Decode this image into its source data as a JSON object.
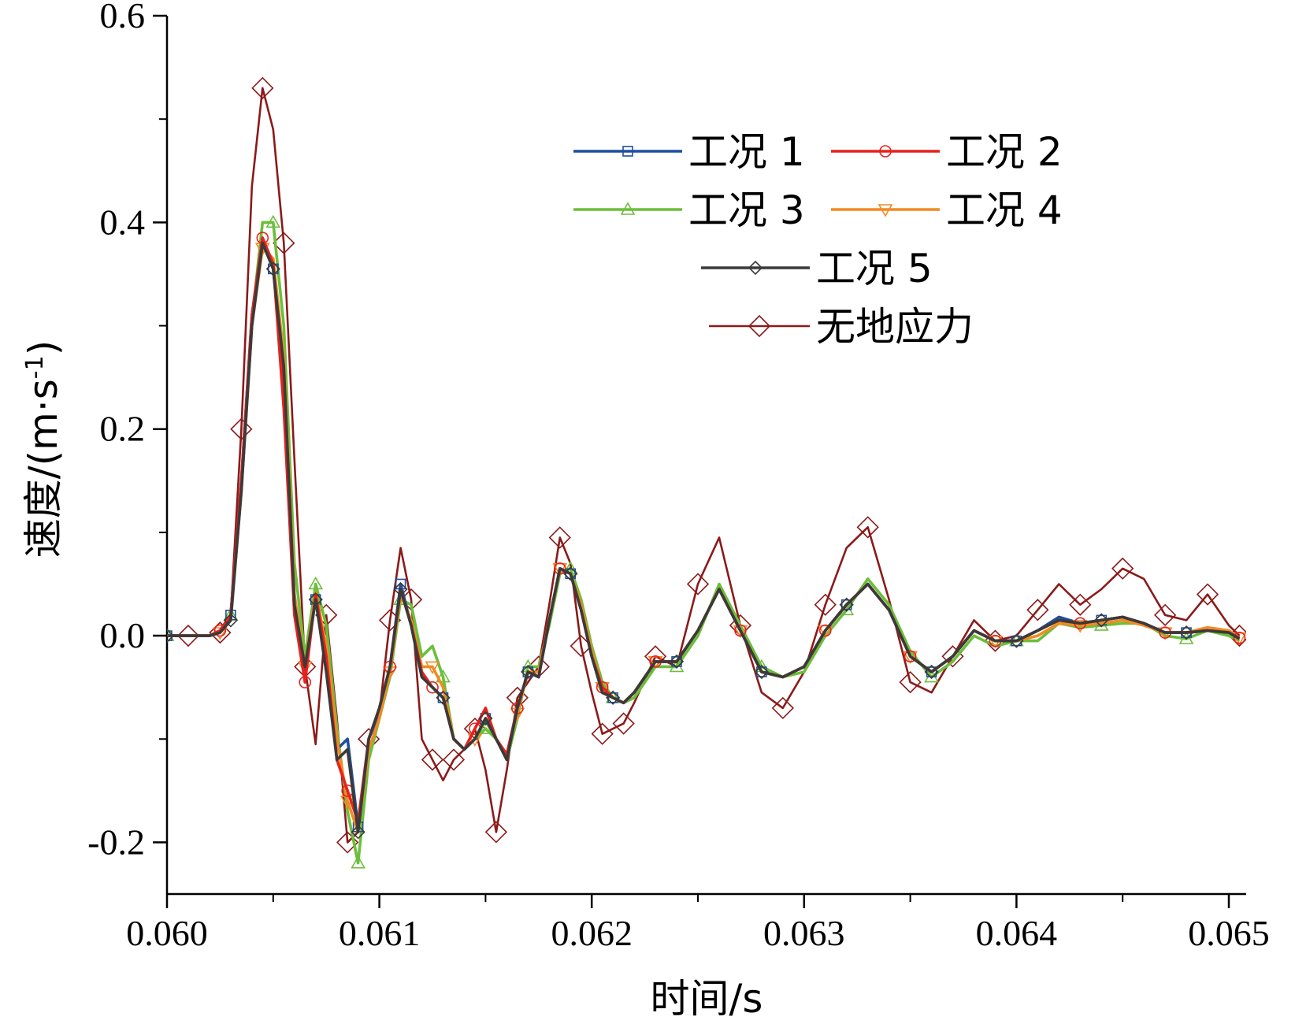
{
  "chart_data": {
    "type": "line",
    "title": "",
    "xlabel": "时间/s",
    "ylabel": "速度/(m·s",
    "ylabel_sup": "-1",
    "ylabel_close": ")",
    "xlim": [
      0.06,
      0.065
    ],
    "ylim": [
      -0.25,
      0.6
    ],
    "xticks": [
      0.06,
      0.061,
      0.062,
      0.063,
      0.064,
      0.065
    ],
    "xtick_labels": [
      "0.060",
      "0.061",
      "0.062",
      "0.063",
      "0.064",
      "0.065"
    ],
    "yticks": [
      -0.2,
      0.0,
      0.2,
      0.4,
      0.6
    ],
    "ytick_labels": [
      "-0.2",
      "0.0",
      "0.2",
      "0.4",
      "0.6"
    ],
    "grid": false,
    "legend_position": "top-right",
    "series": [
      {
        "name": "工况 1",
        "color": "#1f4e9e",
        "marker": "square",
        "x": [
          0.06,
          0.0601,
          0.0602,
          0.06025,
          0.0603,
          0.06035,
          0.0604,
          0.06045,
          0.0605,
          0.06055,
          0.0606,
          0.06065,
          0.0607,
          0.06075,
          0.0608,
          0.06085,
          0.0609,
          0.06095,
          0.061,
          0.06105,
          0.0611,
          0.06115,
          0.0612,
          0.06125,
          0.0613,
          0.06135,
          0.0614,
          0.06145,
          0.0615,
          0.06155,
          0.0616,
          0.06165,
          0.0617,
          0.06175,
          0.0618,
          0.06185,
          0.0619,
          0.06195,
          0.062,
          0.06205,
          0.0621,
          0.06215,
          0.0622,
          0.0623,
          0.0624,
          0.0625,
          0.0626,
          0.0627,
          0.0628,
          0.0629,
          0.063,
          0.0631,
          0.0632,
          0.0633,
          0.0634,
          0.0635,
          0.0636,
          0.0637,
          0.0638,
          0.0639,
          0.064,
          0.0641,
          0.0642,
          0.0643,
          0.0644,
          0.0645,
          0.0646,
          0.0647,
          0.0648,
          0.0649,
          0.065,
          0.06505
        ],
        "y": [
          0.0,
          0.0,
          0.0,
          0.005,
          0.02,
          0.15,
          0.31,
          0.385,
          0.355,
          0.25,
          0.03,
          -0.03,
          0.035,
          -0.02,
          -0.11,
          -0.1,
          -0.185,
          -0.1,
          -0.075,
          -0.03,
          0.05,
          0.01,
          -0.04,
          -0.05,
          -0.06,
          -0.1,
          -0.11,
          -0.1,
          -0.08,
          -0.1,
          -0.115,
          -0.07,
          -0.035,
          -0.04,
          0.015,
          0.065,
          0.06,
          0.025,
          -0.02,
          -0.055,
          -0.06,
          -0.065,
          -0.055,
          -0.025,
          -0.025,
          0.005,
          0.045,
          0.005,
          -0.035,
          -0.04,
          -0.03,
          0.005,
          0.03,
          0.05,
          0.025,
          -0.02,
          -0.035,
          -0.02,
          0.005,
          -0.005,
          -0.005,
          0.005,
          0.018,
          0.012,
          0.015,
          0.018,
          0.012,
          0.003,
          0.003,
          0.005,
          0.003,
          -0.002
        ]
      },
      {
        "name": "工况 2",
        "color": "#e8211d",
        "marker": "circle",
        "x": [
          0.06,
          0.0601,
          0.0602,
          0.06025,
          0.0603,
          0.06035,
          0.0604,
          0.06045,
          0.0605,
          0.06055,
          0.0606,
          0.06065,
          0.0607,
          0.06075,
          0.0608,
          0.06085,
          0.0609,
          0.06095,
          0.061,
          0.06105,
          0.0611,
          0.06115,
          0.0612,
          0.06125,
          0.0613,
          0.06135,
          0.0614,
          0.06145,
          0.0615,
          0.06155,
          0.0616,
          0.06165,
          0.0617,
          0.06175,
          0.0618,
          0.06185,
          0.0619,
          0.06195,
          0.062,
          0.06205,
          0.0621,
          0.06215,
          0.0622,
          0.0623,
          0.0624,
          0.0625,
          0.0626,
          0.0627,
          0.0628,
          0.0629,
          0.063,
          0.0631,
          0.0632,
          0.0633,
          0.0634,
          0.0635,
          0.0636,
          0.0637,
          0.0638,
          0.0639,
          0.064,
          0.0641,
          0.0642,
          0.0643,
          0.0644,
          0.0645,
          0.0646,
          0.0647,
          0.0648,
          0.0649,
          0.065,
          0.06505
        ],
        "y": [
          0.0,
          0.0,
          0.0,
          0.005,
          0.02,
          0.15,
          0.31,
          0.385,
          0.36,
          0.22,
          0.02,
          -0.045,
          0.04,
          -0.02,
          -0.12,
          -0.15,
          -0.18,
          -0.1,
          -0.07,
          -0.03,
          0.045,
          0.01,
          -0.035,
          -0.05,
          -0.06,
          -0.1,
          -0.11,
          -0.09,
          -0.07,
          -0.1,
          -0.115,
          -0.07,
          -0.035,
          -0.04,
          0.015,
          0.065,
          0.06,
          0.025,
          -0.02,
          -0.05,
          -0.06,
          -0.065,
          -0.055,
          -0.025,
          -0.025,
          0.005,
          0.045,
          0.005,
          -0.035,
          -0.04,
          -0.03,
          0.005,
          0.03,
          0.05,
          0.025,
          -0.02,
          -0.035,
          -0.02,
          0.005,
          -0.005,
          -0.005,
          0.005,
          0.015,
          0.012,
          0.015,
          0.018,
          0.012,
          0.003,
          0.003,
          0.005,
          0.003,
          -0.002
        ]
      },
      {
        "name": "工况 3",
        "color": "#6bbf3a",
        "marker": "triangle-up",
        "x": [
          0.06,
          0.0601,
          0.0602,
          0.06025,
          0.0603,
          0.06035,
          0.0604,
          0.06045,
          0.0605,
          0.06055,
          0.0606,
          0.06065,
          0.0607,
          0.06075,
          0.0608,
          0.06085,
          0.0609,
          0.06095,
          0.061,
          0.06105,
          0.0611,
          0.06115,
          0.0612,
          0.06125,
          0.0613,
          0.06135,
          0.0614,
          0.06145,
          0.0615,
          0.06155,
          0.0616,
          0.06165,
          0.0617,
          0.06175,
          0.0618,
          0.06185,
          0.0619,
          0.06195,
          0.062,
          0.06205,
          0.0621,
          0.06215,
          0.0622,
          0.0623,
          0.0624,
          0.0625,
          0.0626,
          0.0627,
          0.0628,
          0.0629,
          0.063,
          0.0631,
          0.0632,
          0.0633,
          0.0634,
          0.0635,
          0.0636,
          0.0637,
          0.0638,
          0.0639,
          0.064,
          0.0641,
          0.0642,
          0.0643,
          0.0644,
          0.0645,
          0.0646,
          0.0647,
          0.0648,
          0.0649,
          0.065,
          0.06505
        ],
        "y": [
          0.0,
          0.0,
          0.0,
          0.005,
          0.02,
          0.14,
          0.305,
          0.4,
          0.4,
          0.3,
          0.07,
          -0.02,
          0.05,
          0.01,
          -0.09,
          -0.17,
          -0.22,
          -0.12,
          -0.08,
          -0.04,
          0.035,
          0.03,
          -0.02,
          -0.01,
          -0.04,
          -0.1,
          -0.11,
          -0.1,
          -0.09,
          -0.1,
          -0.12,
          -0.08,
          -0.03,
          -0.03,
          0.01,
          0.06,
          0.065,
          0.035,
          -0.01,
          -0.045,
          -0.06,
          -0.065,
          -0.06,
          -0.03,
          -0.03,
          0.0,
          0.05,
          0.01,
          -0.03,
          -0.04,
          -0.035,
          0.0,
          0.025,
          0.055,
          0.03,
          -0.015,
          -0.04,
          -0.025,
          0.0,
          -0.01,
          -0.005,
          -0.005,
          0.012,
          0.008,
          0.01,
          0.012,
          0.012,
          0.0,
          -0.003,
          0.005,
          0.0,
          -0.005
        ]
      },
      {
        "name": "工况 4",
        "color": "#f28a24",
        "marker": "triangle-down",
        "x": [
          0.06,
          0.0601,
          0.0602,
          0.06025,
          0.0603,
          0.06035,
          0.0604,
          0.06045,
          0.0605,
          0.06055,
          0.0606,
          0.06065,
          0.0607,
          0.06075,
          0.0608,
          0.06085,
          0.0609,
          0.06095,
          0.061,
          0.06105,
          0.0611,
          0.06115,
          0.0612,
          0.06125,
          0.0613,
          0.06135,
          0.0614,
          0.06145,
          0.0615,
          0.06155,
          0.0616,
          0.06165,
          0.0617,
          0.06175,
          0.0618,
          0.06185,
          0.0619,
          0.06195,
          0.062,
          0.06205,
          0.0621,
          0.06215,
          0.0622,
          0.0623,
          0.0624,
          0.0625,
          0.0626,
          0.0627,
          0.0628,
          0.0629,
          0.063,
          0.0631,
          0.0632,
          0.0633,
          0.0634,
          0.0635,
          0.0636,
          0.0637,
          0.0638,
          0.0639,
          0.064,
          0.0641,
          0.0642,
          0.0643,
          0.0644,
          0.0645,
          0.0646,
          0.0647,
          0.0648,
          0.0649,
          0.065,
          0.06505
        ],
        "y": [
          0.0,
          0.0,
          0.0,
          0.003,
          0.015,
          0.14,
          0.3,
          0.375,
          0.365,
          0.27,
          0.04,
          -0.03,
          0.042,
          -0.01,
          -0.1,
          -0.16,
          -0.19,
          -0.11,
          -0.08,
          -0.035,
          0.04,
          0.015,
          -0.03,
          -0.03,
          -0.05,
          -0.1,
          -0.11,
          -0.1,
          -0.08,
          -0.1,
          -0.115,
          -0.075,
          -0.035,
          -0.035,
          0.015,
          0.065,
          0.06,
          0.03,
          -0.015,
          -0.05,
          -0.06,
          -0.065,
          -0.055,
          -0.025,
          -0.025,
          0.005,
          0.045,
          0.005,
          -0.035,
          -0.04,
          -0.03,
          0.005,
          0.03,
          0.05,
          0.025,
          -0.02,
          -0.035,
          -0.02,
          0.005,
          -0.005,
          -0.005,
          0.0,
          0.012,
          0.01,
          0.012,
          0.015,
          0.01,
          0.003,
          0.003,
          0.008,
          0.005,
          -0.002
        ]
      },
      {
        "name": "工况 5",
        "color": "#3a3a3a",
        "marker": "diamond",
        "x": [
          0.06,
          0.0601,
          0.0602,
          0.06025,
          0.0603,
          0.06035,
          0.0604,
          0.06045,
          0.0605,
          0.06055,
          0.0606,
          0.06065,
          0.0607,
          0.06075,
          0.0608,
          0.06085,
          0.0609,
          0.06095,
          0.061,
          0.06105,
          0.0611,
          0.06115,
          0.0612,
          0.06125,
          0.0613,
          0.06135,
          0.0614,
          0.06145,
          0.0615,
          0.06155,
          0.0616,
          0.06165,
          0.0617,
          0.06175,
          0.0618,
          0.06185,
          0.0619,
          0.06195,
          0.062,
          0.06205,
          0.0621,
          0.06215,
          0.0622,
          0.0623,
          0.0624,
          0.0625,
          0.0626,
          0.0627,
          0.0628,
          0.0629,
          0.063,
          0.0631,
          0.0632,
          0.0633,
          0.0634,
          0.0635,
          0.0636,
          0.0637,
          0.0638,
          0.0639,
          0.064,
          0.0641,
          0.0642,
          0.0643,
          0.0644,
          0.0645,
          0.0646,
          0.0647,
          0.0648,
          0.0649,
          0.065,
          0.06505
        ],
        "y": [
          0.0,
          0.0,
          0.0,
          0.003,
          0.015,
          0.14,
          0.3,
          0.38,
          0.355,
          0.26,
          0.03,
          -0.03,
          0.035,
          -0.035,
          -0.12,
          -0.11,
          -0.19,
          -0.1,
          -0.07,
          -0.03,
          0.045,
          0.01,
          -0.04,
          -0.05,
          -0.06,
          -0.1,
          -0.11,
          -0.1,
          -0.08,
          -0.1,
          -0.12,
          -0.07,
          -0.035,
          -0.04,
          0.015,
          0.065,
          0.06,
          0.025,
          -0.02,
          -0.055,
          -0.06,
          -0.065,
          -0.055,
          -0.025,
          -0.025,
          0.005,
          0.045,
          0.005,
          -0.035,
          -0.04,
          -0.03,
          0.005,
          0.03,
          0.05,
          0.025,
          -0.02,
          -0.035,
          -0.02,
          0.005,
          -0.005,
          -0.005,
          0.005,
          0.015,
          0.012,
          0.015,
          0.018,
          0.012,
          0.003,
          0.003,
          0.005,
          0.003,
          -0.003
        ]
      },
      {
        "name": "无地应力",
        "color": "#8b1a1a",
        "marker": "diamond-large",
        "x": [
          0.06,
          0.0601,
          0.0602,
          0.06025,
          0.0603,
          0.06035,
          0.0604,
          0.06045,
          0.0605,
          0.06055,
          0.0606,
          0.06065,
          0.0607,
          0.06075,
          0.0608,
          0.06085,
          0.0609,
          0.06095,
          0.061,
          0.06105,
          0.0611,
          0.06115,
          0.0612,
          0.06125,
          0.0613,
          0.06135,
          0.0614,
          0.06145,
          0.0615,
          0.06155,
          0.0616,
          0.06165,
          0.0617,
          0.06175,
          0.0618,
          0.06185,
          0.0619,
          0.06195,
          0.062,
          0.06205,
          0.0621,
          0.06215,
          0.0622,
          0.0623,
          0.0624,
          0.0625,
          0.0626,
          0.0627,
          0.0628,
          0.0629,
          0.063,
          0.0631,
          0.0632,
          0.0633,
          0.0634,
          0.0635,
          0.0636,
          0.0637,
          0.0638,
          0.0639,
          0.064,
          0.0641,
          0.0642,
          0.0643,
          0.0644,
          0.0645,
          0.0646,
          0.0647,
          0.0648,
          0.0649,
          0.065,
          0.06505
        ],
        "y": [
          0.0,
          0.0,
          0.0,
          0.003,
          0.02,
          0.2,
          0.435,
          0.53,
          0.49,
          0.38,
          0.17,
          -0.03,
          -0.105,
          0.02,
          -0.08,
          -0.2,
          -0.19,
          -0.1,
          -0.075,
          0.015,
          0.085,
          0.035,
          -0.1,
          -0.12,
          -0.14,
          -0.12,
          -0.11,
          -0.09,
          -0.13,
          -0.19,
          -0.13,
          -0.06,
          -0.045,
          -0.03,
          0.03,
          0.095,
          0.07,
          -0.01,
          -0.055,
          -0.095,
          -0.09,
          -0.085,
          -0.065,
          -0.02,
          -0.03,
          0.05,
          0.095,
          0.01,
          -0.055,
          -0.07,
          -0.035,
          0.03,
          0.085,
          0.105,
          0.035,
          -0.045,
          -0.055,
          -0.02,
          0.015,
          -0.005,
          0.0,
          0.025,
          0.05,
          0.03,
          0.045,
          0.065,
          0.055,
          0.02,
          0.015,
          0.04,
          0.01,
          0.0
        ]
      }
    ]
  }
}
